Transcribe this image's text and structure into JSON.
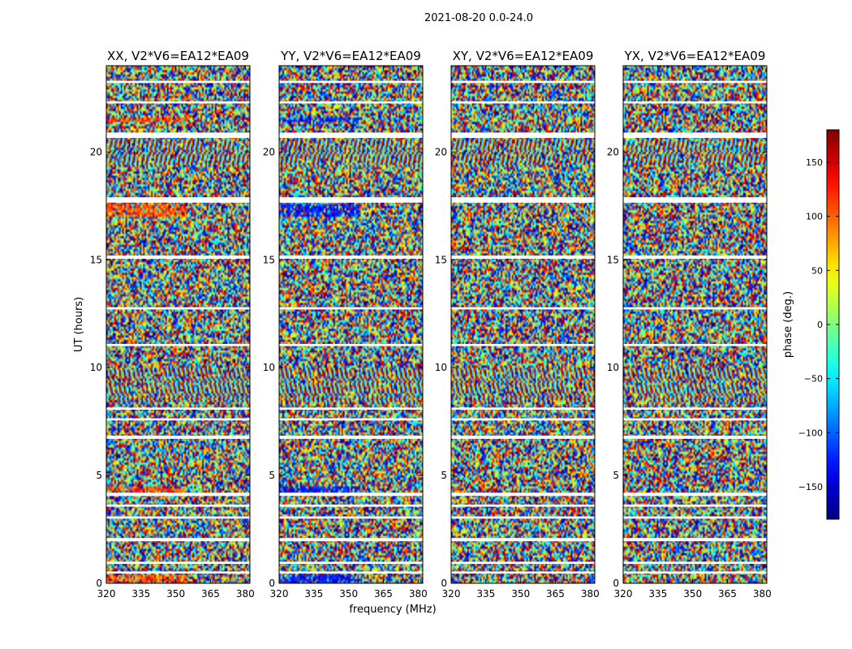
{
  "chart_data": {
    "type": "heatmap",
    "title": "2021-08-20 0.0-24.0",
    "xlabel": "frequency (MHz)",
    "ylabel": "UT (hours)",
    "xlim": [
      320,
      382
    ],
    "ylim": [
      0,
      24
    ],
    "xticks": [
      320,
      335,
      350,
      365,
      380
    ],
    "yticks": [
      0,
      5,
      10,
      15,
      20
    ],
    "panels": [
      {
        "title": "XX, V2*V6=EA12*EA09"
      },
      {
        "title": "YY, V2*V6=EA12*EA09"
      },
      {
        "title": "XY, V2*V6=EA12*EA09"
      },
      {
        "title": "YX, V2*V6=EA12*EA09"
      }
    ],
    "colorbar": {
      "label": "phase (deg.)",
      "colormap": "jet",
      "range": [
        -180,
        180
      ],
      "ticks": [
        150,
        100,
        50,
        0,
        -50,
        -100,
        -150
      ]
    },
    "blank_bands_hours": [
      [
        0.45,
        0.55
      ],
      [
        0.9,
        1.0
      ],
      [
        1.95,
        2.1
      ],
      [
        3.0,
        3.1
      ],
      [
        3.55,
        3.65
      ],
      [
        4.05,
        4.2
      ],
      [
        6.7,
        6.85
      ],
      [
        7.55,
        7.65
      ],
      [
        8.05,
        8.15
      ],
      [
        11.0,
        11.1
      ],
      [
        12.7,
        12.8
      ],
      [
        15.05,
        15.2
      ],
      [
        17.65,
        17.9
      ],
      [
        20.65,
        20.9
      ],
      [
        22.25,
        22.35
      ],
      [
        23.2,
        23.3
      ]
    ]
  }
}
